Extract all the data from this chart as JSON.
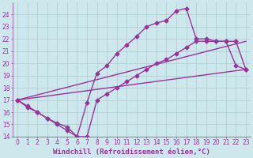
{
  "xlabel": "Windchill (Refroidissement éolien,°C)",
  "bg_color": "#cce8ec",
  "line_color": "#993399",
  "grid_color": "#aacccc",
  "xlim": [
    -0.5,
    23.5
  ],
  "ylim": [
    14,
    25
  ],
  "yticks": [
    14,
    15,
    16,
    17,
    18,
    19,
    20,
    21,
    22,
    23,
    24
  ],
  "xticks": [
    0,
    1,
    2,
    3,
    4,
    5,
    6,
    7,
    8,
    9,
    10,
    11,
    12,
    13,
    14,
    15,
    16,
    17,
    18,
    19,
    20,
    21,
    22,
    23
  ],
  "series_peak_x": [
    0,
    1,
    2,
    3,
    4,
    5,
    6,
    7,
    8,
    9,
    10,
    11,
    12,
    13,
    14,
    15,
    16,
    17,
    18,
    19,
    20,
    21,
    22,
    23
  ],
  "series_peak_y": [
    17.0,
    16.4,
    16.0,
    15.5,
    15.1,
    14.8,
    14.0,
    16.8,
    19.2,
    19.8,
    20.8,
    21.5,
    22.2,
    23.0,
    23.3,
    23.5,
    24.3,
    24.5,
    22.0,
    22.0,
    21.8,
    21.8,
    19.8,
    19.5
  ],
  "series_lower_x": [
    0,
    1,
    2,
    3,
    4,
    5,
    6,
    7,
    8,
    9,
    10,
    11,
    12,
    13,
    14,
    15,
    16,
    17,
    18,
    19,
    20,
    21,
    22,
    23
  ],
  "series_lower_y": [
    17.0,
    16.5,
    16.0,
    15.5,
    15.0,
    14.5,
    14.0,
    14.0,
    17.0,
    17.5,
    18.0,
    18.5,
    19.0,
    19.5,
    20.0,
    20.3,
    20.8,
    21.3,
    21.8,
    21.8,
    21.8,
    21.8,
    21.8,
    19.5
  ],
  "line1_x": [
    0,
    23
  ],
  "line1_y": [
    17.0,
    21.8
  ],
  "line2_x": [
    0,
    23
  ],
  "line2_y": [
    17.0,
    19.5
  ],
  "marker": "D",
  "markersize": 2.5,
  "linewidth": 1.0,
  "xlabel_fontsize": 6.5,
  "tick_fontsize": 5.5
}
